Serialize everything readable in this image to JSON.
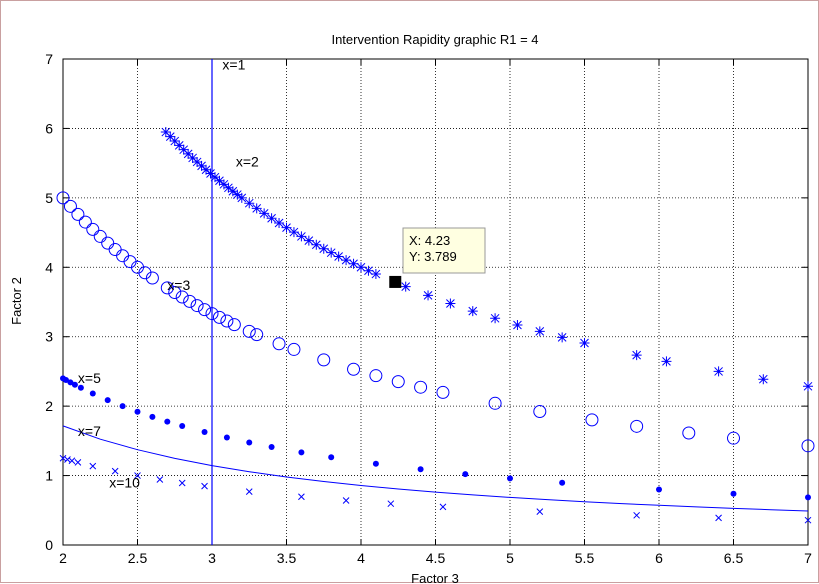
{
  "chart_data": {
    "type": "scatter",
    "title": "Intervention Rapidity graphic R1 = 4",
    "xlabel": "Factor 3",
    "ylabel": "Factor 2",
    "xlim": [
      2,
      7
    ],
    "ylim": [
      0,
      7
    ],
    "xticks": [
      "2",
      "2.5",
      "3",
      "3.5",
      "4",
      "4.5",
      "5",
      "5.5",
      "6",
      "6.5",
      "7"
    ],
    "yticks": [
      "0",
      "1",
      "2",
      "3",
      "4",
      "5",
      "6",
      "7"
    ],
    "grid": "dotted",
    "color": "#0000ff",
    "vertical_line": {
      "label": "x=1",
      "x": 3
    },
    "series": [
      {
        "label": "x=2",
        "marker": "star",
        "k": 16,
        "x": [
          2.69,
          2.72,
          2.75,
          2.78,
          2.81,
          2.84,
          2.87,
          2.9,
          2.93,
          2.96,
          2.99,
          3.02,
          3.05,
          3.08,
          3.11,
          3.14,
          3.17,
          3.2,
          3.25,
          3.3,
          3.35,
          3.4,
          3.45,
          3.5,
          3.55,
          3.6,
          3.65,
          3.7,
          3.75,
          3.8,
          3.85,
          3.9,
          3.95,
          4.0,
          4.05,
          4.1,
          4.3,
          4.45,
          4.6,
          4.75,
          4.9,
          5.05,
          5.2,
          5.35,
          5.5,
          5.85,
          6.05,
          6.4,
          6.7,
          7.0
        ]
      },
      {
        "label": "x=3",
        "marker": "circle",
        "k": 10,
        "x": [
          2.0,
          2.05,
          2.1,
          2.15,
          2.2,
          2.25,
          2.3,
          2.35,
          2.4,
          2.45,
          2.5,
          2.55,
          2.6,
          2.7,
          2.75,
          2.8,
          2.85,
          2.9,
          2.95,
          3.0,
          3.05,
          3.1,
          3.15,
          3.25,
          3.3,
          3.45,
          3.55,
          3.75,
          3.95,
          4.1,
          4.25,
          4.4,
          4.55,
          4.9,
          5.2,
          5.55,
          5.85,
          6.2,
          6.5,
          7.0
        ]
      },
      {
        "label": "x=5",
        "marker": "dot",
        "k": 4.8,
        "x": [
          2.0,
          2.02,
          2.05,
          2.08,
          2.12,
          2.2,
          2.3,
          2.4,
          2.5,
          2.6,
          2.7,
          2.8,
          2.95,
          3.1,
          3.25,
          3.4,
          3.6,
          3.8,
          4.1,
          4.4,
          4.7,
          5.0,
          5.35,
          6.0,
          6.5,
          7.0
        ]
      },
      {
        "label": "x=7",
        "marker": "line",
        "k": 3.43,
        "x": [
          2.0,
          2.25,
          2.5,
          2.75,
          3.0,
          3.25,
          3.5,
          3.75,
          4.0,
          4.25,
          4.5,
          4.75,
          5.0,
          5.25,
          5.5,
          5.75,
          6.0,
          6.25,
          6.5,
          6.75,
          7.0
        ]
      },
      {
        "label": "x=10",
        "marker": "x",
        "k": 2.5,
        "x": [
          2.0,
          2.03,
          2.06,
          2.1,
          2.2,
          2.35,
          2.5,
          2.65,
          2.8,
          2.95,
          3.25,
          3.6,
          3.9,
          4.2,
          4.55,
          5.2,
          5.85,
          6.4,
          7.0
        ]
      }
    ],
    "datatip": {
      "x": 4.23,
      "y": 3.789,
      "lines": [
        "X: 4.23",
        "Y: 3.789"
      ]
    }
  }
}
